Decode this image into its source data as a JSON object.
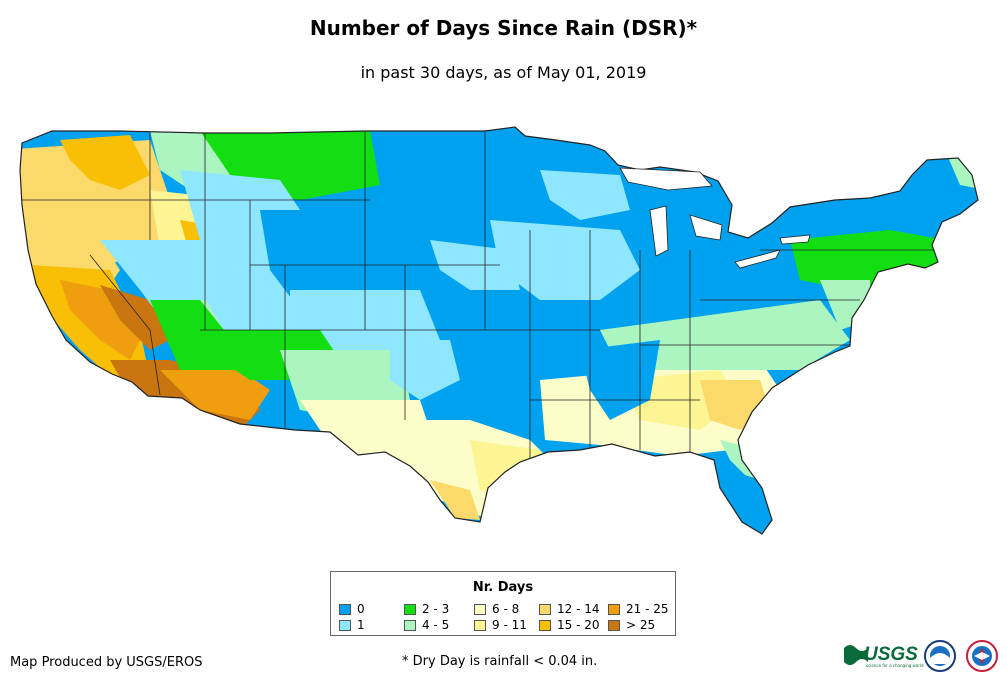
{
  "title": "Number of Days Since Rain (DSR)*",
  "subtitle": "in past 30 days, as of May 01, 2019",
  "legend": {
    "title": "Nr. Days",
    "items": [
      {
        "label": "0",
        "color": "#00a2f0"
      },
      {
        "label": "1",
        "color": "#8fe6ff"
      },
      {
        "label": "2 - 3",
        "color": "#12de12"
      },
      {
        "label": "4 - 5",
        "color": "#abf5c1"
      },
      {
        "label": "6 - 8",
        "color": "#fdfdc9"
      },
      {
        "label": "9 - 11",
        "color": "#fdf493"
      },
      {
        "label": "12 - 14",
        "color": "#fbd96a"
      },
      {
        "label": "15 - 20",
        "color": "#f9bf05"
      },
      {
        "label": "21 - 25",
        "color": "#ef9e10"
      },
      {
        "label": "> 25",
        "color": "#c97510"
      }
    ]
  },
  "credit": "Map Produced by USGS/EROS",
  "footnote": "* Dry Day is rainfall < 0.04 in.",
  "logos": {
    "usgs": "USGS",
    "usgs_tagline": "science for a changing world"
  }
}
